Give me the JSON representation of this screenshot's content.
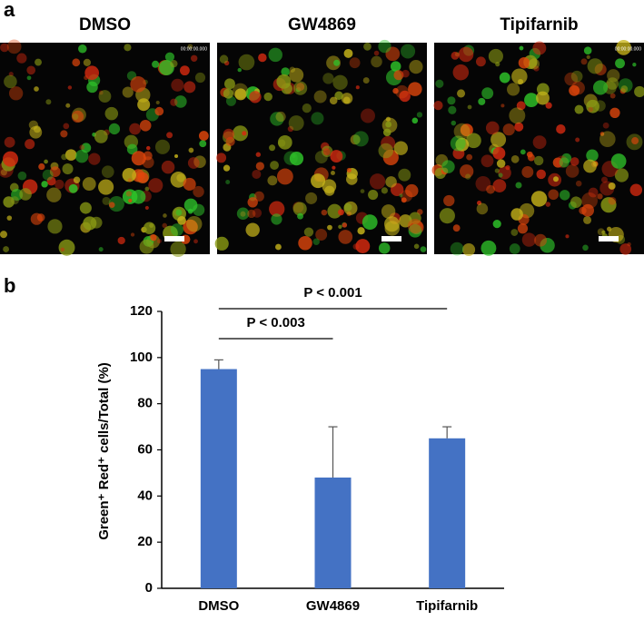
{
  "panel_a": {
    "label": "a",
    "images": [
      {
        "title": "DMSO",
        "timestamp": "00:00:00.000"
      },
      {
        "title": "GW4869"
      },
      {
        "title": "Tipifarnib",
        "timestamp": "00:00:00.000"
      }
    ]
  },
  "chart_data": {
    "type": "bar",
    "panel_label": "b",
    "y_label": "Green⁺ Red⁺ cells/Total (%)",
    "categories": [
      "DMSO",
      "GW4869",
      "Tipifarnib"
    ],
    "values": [
      95,
      48,
      65
    ],
    "errors": [
      4,
      22,
      5
    ],
    "color": "#4472c4",
    "ylim": [
      0,
      120
    ],
    "yticks": [
      0,
      20,
      40,
      60,
      80,
      100,
      120
    ],
    "grid": false,
    "annotations": [
      "P < 0.001",
      "P < 0.003"
    ]
  }
}
